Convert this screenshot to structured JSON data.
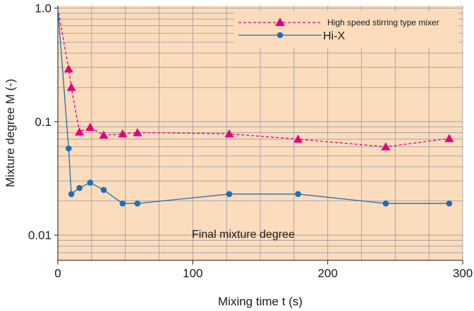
{
  "chart_data": {
    "type": "line",
    "xlabel": "Mixing time t (s)",
    "ylabel": "Mixture degree M (-)",
    "xlim": [
      0,
      300
    ],
    "ylim": [
      0.006,
      1.05
    ],
    "yscale": "log",
    "grid": true,
    "legend_position": "top-right",
    "background_color": "#fbdcbc",
    "x_ticks": [
      0,
      100,
      200,
      300
    ],
    "x_tick_labels": [
      "0",
      "100",
      "200",
      "300"
    ],
    "y_ticks": [
      0.01,
      0.1,
      1.0
    ],
    "y_tick_labels": [
      "0.01",
      "0.1",
      "1.0"
    ],
    "annotation": "Final mixture degree",
    "series": [
      {
        "name": "High speed stirring type mixer",
        "color": "#e6007e",
        "line_style": "dashed",
        "marker": "triangle",
        "x": [
          0,
          8,
          10,
          16,
          24,
          34,
          48,
          59,
          127,
          178,
          243,
          290
        ],
        "y": [
          1.0,
          0.29,
          0.2,
          0.081,
          0.089,
          0.076,
          0.078,
          0.08,
          0.078,
          0.07,
          0.06,
          0.071
        ]
      },
      {
        "name": "Hi-X",
        "color": "#1f6fb5",
        "line_style": "solid",
        "marker": "circle",
        "x": [
          0,
          8,
          10,
          16,
          24,
          34,
          48,
          59,
          127,
          178,
          243,
          290
        ],
        "y": [
          1.0,
          0.058,
          0.023,
          0.026,
          0.029,
          0.025,
          0.019,
          0.019,
          0.023,
          0.023,
          0.019,
          0.019
        ]
      }
    ]
  }
}
